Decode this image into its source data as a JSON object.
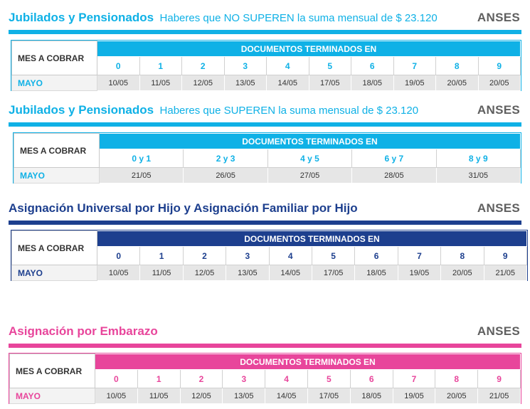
{
  "brand": "ANSES",
  "mes_a_cobrar": "MES A COBRAR",
  "documentos": "DOCUMENTOS TERMINADOS EN",
  "mes": "MAYO",
  "colors": {
    "cyan": "#0fb1e6",
    "navy": "#1d3f8e",
    "pink": "#e8459b",
    "gray_brand": "#5f5f5f"
  },
  "tables": [
    {
      "title": "Jubilados y Pensionados",
      "subtitle": "Haberes que NO SUPEREN la suma mensual de $ 23.120",
      "digits": [
        "0",
        "1",
        "2",
        "3",
        "4",
        "5",
        "6",
        "7",
        "8",
        "9"
      ],
      "dates": [
        "10/05",
        "11/05",
        "12/05",
        "13/05",
        "14/05",
        "17/05",
        "18/05",
        "19/05",
        "20/05",
        "20/05"
      ]
    },
    {
      "title": "Jubilados y Pensionados",
      "subtitle": "Haberes que SUPEREN la suma mensual de $ 23.120",
      "digits": [
        "0 y 1",
        "2 y 3",
        "4 y 5",
        "6 y 7",
        "8 y 9"
      ],
      "dates": [
        "21/05",
        "26/05",
        "27/05",
        "28/05",
        "31/05"
      ]
    },
    {
      "title": "Asignación Universal por Hijo y Asignación Familiar por Hijo",
      "subtitle": "",
      "digits": [
        "0",
        "1",
        "2",
        "3",
        "4",
        "5",
        "6",
        "7",
        "8",
        "9"
      ],
      "dates": [
        "10/05",
        "11/05",
        "12/05",
        "13/05",
        "14/05",
        "17/05",
        "18/05",
        "19/05",
        "20/05",
        "21/05"
      ]
    },
    {
      "title": "Asignación por Embarazo",
      "subtitle": "",
      "digits": [
        "0",
        "1",
        "2",
        "3",
        "4",
        "5",
        "6",
        "7",
        "8",
        "9"
      ],
      "dates": [
        "10/05",
        "11/05",
        "12/05",
        "13/05",
        "14/05",
        "17/05",
        "18/05",
        "19/05",
        "20/05",
        "21/05"
      ]
    }
  ]
}
